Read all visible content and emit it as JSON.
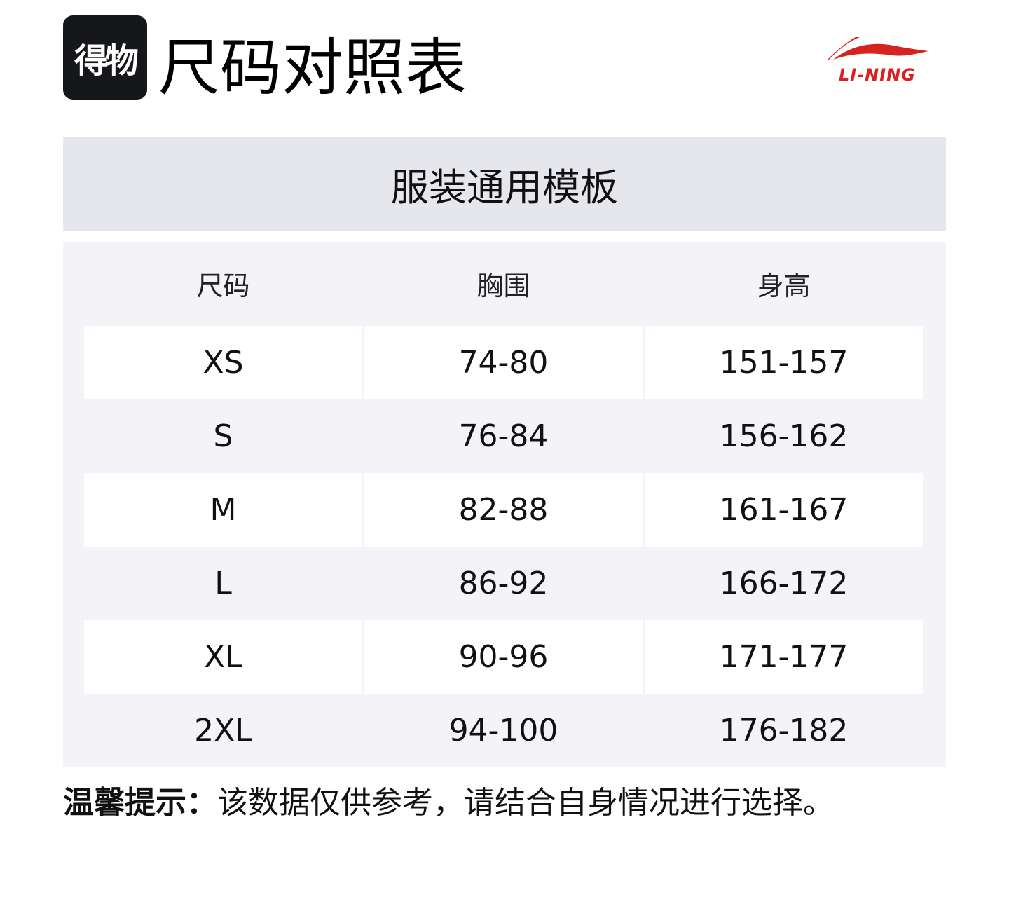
{
  "header": {
    "app_badge": "得物",
    "title": "尺码对照表",
    "brand_logo": "LI-NING",
    "brand_color": "#d8221f"
  },
  "banner": {
    "label": "服装通用模板"
  },
  "table": {
    "columns": [
      "尺码",
      "胸围",
      "身高"
    ],
    "rows": [
      [
        "XS",
        "74-80",
        "151-157"
      ],
      [
        "S",
        "76-84",
        "156-162"
      ],
      [
        "M",
        "82-88",
        "161-167"
      ],
      [
        "L",
        "86-92",
        "166-172"
      ],
      [
        "XL",
        "90-96",
        "171-177"
      ],
      [
        "2XL",
        "94-100",
        "176-182"
      ]
    ]
  },
  "note": {
    "label": "温馨提示：",
    "text": "该数据仅供参考，请结合自身情况进行选择。"
  }
}
